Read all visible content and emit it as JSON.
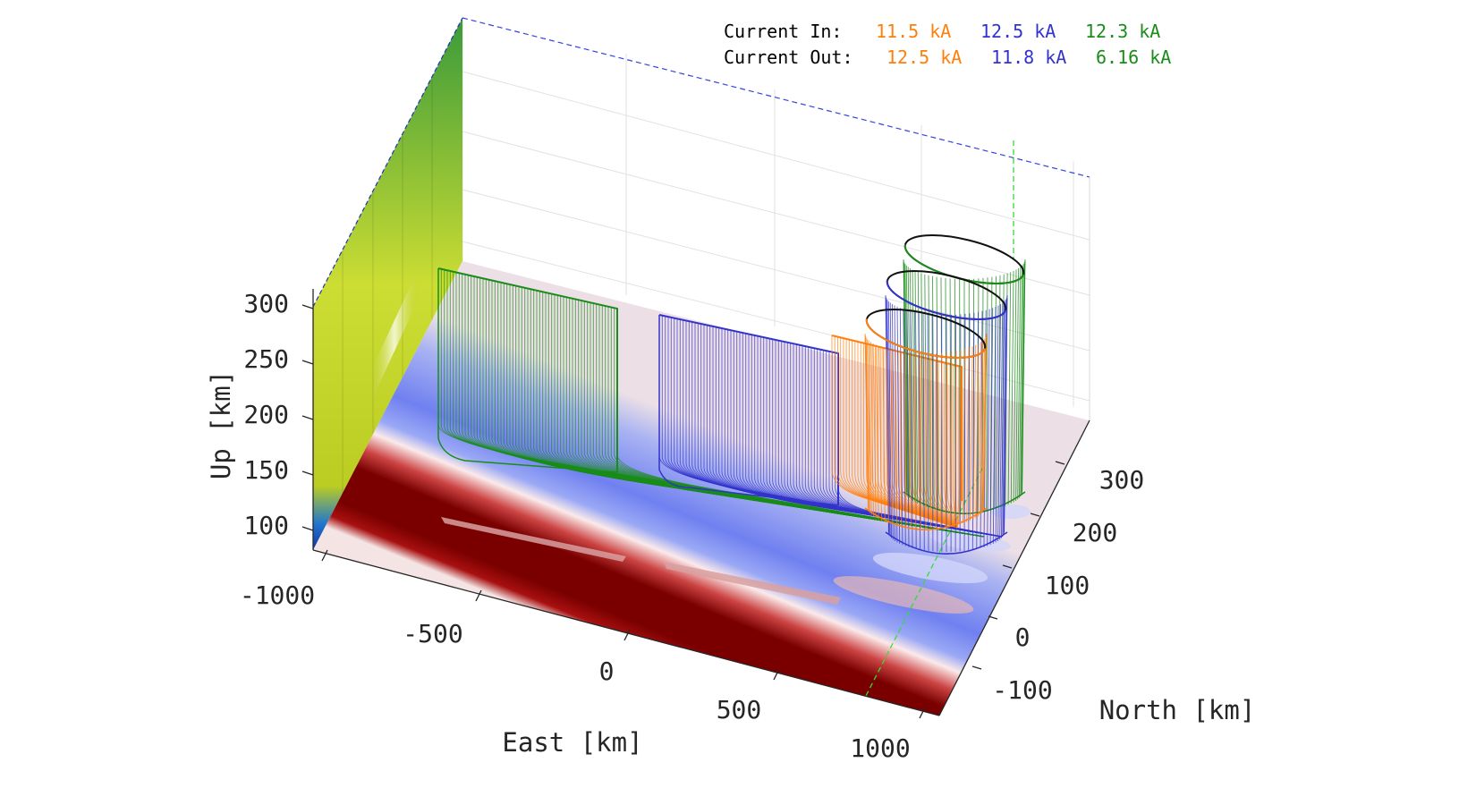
{
  "chart_data": {
    "type": "3d-field-line-plot",
    "xlabel": "East [km]",
    "ylabel": "North [km]",
    "zlabel": "Up [km]",
    "xticks": [
      "-1000",
      "-500",
      "0",
      "500",
      "1000"
    ],
    "yticks": [
      "-100",
      "0",
      "100",
      "200",
      "300"
    ],
    "zticks": [
      "100",
      "150",
      "200",
      "250",
      "300"
    ],
    "xlim": [
      -1000,
      1000
    ],
    "ylim": [
      -150,
      350
    ],
    "zlim": [
      80,
      300
    ],
    "colors": {
      "orange": "#ff7f0e",
      "blue": "#3333cc",
      "green": "#1a8c1a",
      "text": "#000000"
    },
    "legend": {
      "in_label": "Current In:",
      "out_label": "Current Out:",
      "in_values": [
        "11.5 kA",
        "12.5 kA",
        "12.3 kA"
      ],
      "out_values": [
        "12.5 kA",
        "11.8 kA",
        "6.16 kA"
      ]
    },
    "series": [
      {
        "color": "orange",
        "current_in": "11.5 kA",
        "current_out": "12.5 kA"
      },
      {
        "color": "blue",
        "current_in": "12.5 kA",
        "current_out": "11.8 kA"
      },
      {
        "color": "green",
        "current_in": "12.3 kA",
        "current_out": "6.16 kA"
      }
    ]
  }
}
